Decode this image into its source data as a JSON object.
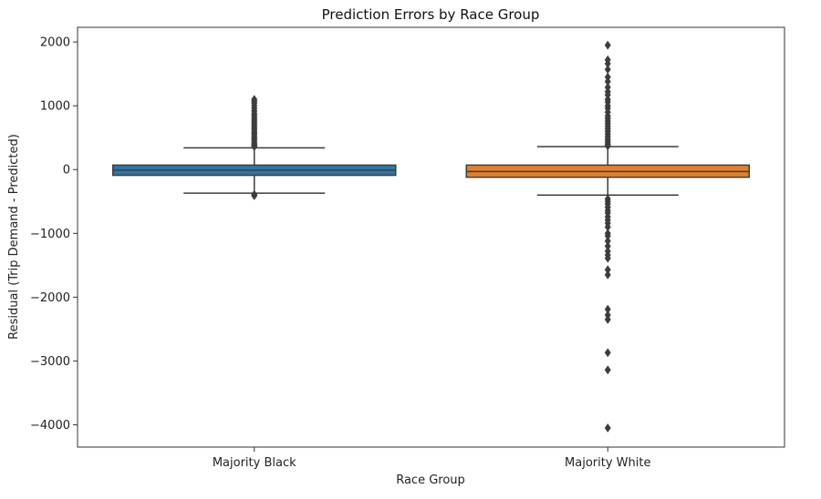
{
  "chart_data": {
    "type": "box",
    "title": "Prediction Errors by Race Group",
    "xlabel": "Race Group",
    "ylabel": "Residual (Trip Demand - Predicted)",
    "ylim": [
      -4350,
      2230
    ],
    "yticks": [
      2000,
      1000,
      0,
      -1000,
      -2000,
      -3000,
      -4000
    ],
    "ytick_labels": [
      "2000",
      "1000",
      "0",
      "−1000",
      "−2000",
      "−3000",
      "−4000"
    ],
    "grid": false,
    "categories": [
      "Majority Black",
      "Majority White"
    ],
    "boxes": [
      {
        "category": "Majority Black",
        "color": "#3274a1",
        "whisker_low": -370,
        "q1": -90,
        "median": -10,
        "q3": 70,
        "whisker_high": 340,
        "outliers": [
          1100,
          1070,
          1040,
          1000,
          960,
          920,
          880,
          850,
          820,
          790,
          760,
          730,
          700,
          670,
          640,
          610,
          580,
          560,
          530,
          500,
          480,
          450,
          420,
          400,
          380,
          360,
          -390,
          -410
        ]
      },
      {
        "category": "Majority White",
        "color": "#e1812c",
        "whisker_low": -400,
        "q1": -120,
        "median": -30,
        "q3": 70,
        "whisker_high": 360,
        "outliers": [
          1950,
          1720,
          1660,
          1570,
          1450,
          1380,
          1290,
          1220,
          1170,
          1100,
          1060,
          1000,
          960,
          900,
          840,
          800,
          760,
          720,
          680,
          640,
          600,
          560,
          520,
          480,
          450,
          420,
          390,
          370,
          -460,
          -500,
          -540,
          -590,
          -640,
          -680,
          -740,
          -790,
          -840,
          -900,
          -1000,
          -1040,
          -1120,
          -1200,
          -1280,
          -1340,
          -1390,
          -1570,
          -1650,
          -2190,
          -2280,
          -2350,
          -2870,
          -3140,
          -4050
        ]
      }
    ]
  }
}
